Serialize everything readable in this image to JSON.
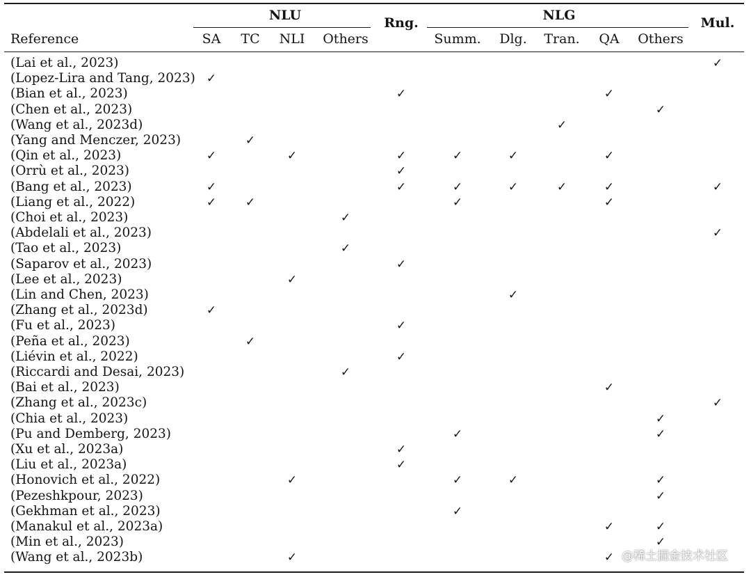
{
  "table": {
    "reference_header": "Reference",
    "groups": {
      "nlu": "NLU",
      "rng": "Rng.",
      "nlg": "NLG",
      "mul": "Mul."
    },
    "subcolumns": [
      "SA",
      "TC",
      "NLI",
      "Others",
      "Summ.",
      "Dlg.",
      "Tran.",
      "QA",
      "Others"
    ],
    "checkmark": "✓",
    "column_keys": [
      "SA",
      "TC",
      "NLI",
      "NLU-Others",
      "Rng",
      "Summ",
      "Dlg",
      "Tran",
      "QA",
      "NLG-Others",
      "Mul"
    ],
    "rows": [
      {
        "ref": "(Lai et al., 2023)",
        "checks": [
          "Mul"
        ]
      },
      {
        "ref": "(Lopez-Lira and Tang, 2023)",
        "checks": [
          "SA"
        ]
      },
      {
        "ref": "(Bian et al., 2023)",
        "checks": [
          "Rng",
          "QA"
        ]
      },
      {
        "ref": "(Chen et al., 2023)",
        "checks": [
          "NLG-Others"
        ]
      },
      {
        "ref": "(Wang et al., 2023d)",
        "checks": [
          "Tran"
        ]
      },
      {
        "ref": "(Yang and Menczer, 2023)",
        "checks": [
          "TC"
        ]
      },
      {
        "ref": "(Qin et al., 2023)",
        "checks": [
          "SA",
          "NLI",
          "Rng",
          "Summ",
          "Dlg",
          "QA"
        ]
      },
      {
        "ref": "(Orrù et al., 2023)",
        "checks": [
          "Rng"
        ]
      },
      {
        "ref": "(Bang et al., 2023)",
        "checks": [
          "SA",
          "Rng",
          "Summ",
          "Dlg",
          "Tran",
          "QA",
          "Mul"
        ]
      },
      {
        "ref": "(Liang et al., 2022)",
        "checks": [
          "SA",
          "TC",
          "Summ",
          "QA"
        ]
      },
      {
        "ref": "(Choi et al., 2023)",
        "checks": [
          "NLU-Others"
        ]
      },
      {
        "ref": "(Abdelali et al., 2023)",
        "checks": [
          "Mul"
        ]
      },
      {
        "ref": "(Tao et al., 2023)",
        "checks": [
          "NLU-Others"
        ]
      },
      {
        "ref": "(Saparov et al., 2023)",
        "checks": [
          "Rng"
        ]
      },
      {
        "ref": "(Lee et al., 2023)",
        "checks": [
          "NLI"
        ]
      },
      {
        "ref": "(Lin and Chen, 2023)",
        "checks": [
          "Dlg"
        ]
      },
      {
        "ref": "(Zhang et al., 2023d)",
        "checks": [
          "SA"
        ]
      },
      {
        "ref": "(Fu et al., 2023)",
        "checks": [
          "Rng"
        ]
      },
      {
        "ref": "(Peña et al., 2023)",
        "checks": [
          "TC"
        ]
      },
      {
        "ref": "(Liévin et al., 2022)",
        "checks": [
          "Rng"
        ]
      },
      {
        "ref": "(Riccardi and Desai, 2023)",
        "checks": [
          "NLU-Others"
        ]
      },
      {
        "ref": "(Bai et al., 2023)",
        "checks": [
          "QA"
        ]
      },
      {
        "ref": "(Zhang et al., 2023c)",
        "checks": [
          "Mul"
        ]
      },
      {
        "ref": "(Chia et al., 2023)",
        "checks": [
          "NLG-Others"
        ]
      },
      {
        "ref": "(Pu and Demberg, 2023)",
        "checks": [
          "Summ",
          "NLG-Others"
        ]
      },
      {
        "ref": "(Xu et al., 2023a)",
        "checks": [
          "Rng"
        ]
      },
      {
        "ref": "(Liu et al., 2023a)",
        "checks": [
          "Rng"
        ]
      },
      {
        "ref": "(Honovich et al., 2022)",
        "checks": [
          "NLI",
          "Summ",
          "Dlg",
          "NLG-Others"
        ]
      },
      {
        "ref": "(Pezeshkpour, 2023)",
        "checks": [
          "NLG-Others"
        ]
      },
      {
        "ref": "(Gekhman et al., 2023)",
        "checks": [
          "Summ"
        ]
      },
      {
        "ref": "(Manakul et al., 2023a)",
        "checks": [
          "QA",
          "NLG-Others"
        ]
      },
      {
        "ref": "(Min et al., 2023)",
        "checks": [
          "NLG-Others"
        ]
      },
      {
        "ref": "(Wang et al., 2023b)",
        "checks": [
          "NLI",
          "QA"
        ]
      }
    ]
  },
  "watermark": "@稀土掘金技术社区"
}
